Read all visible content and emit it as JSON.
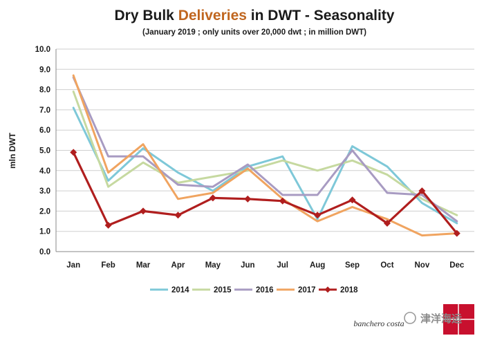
{
  "chart_data": {
    "type": "line",
    "title_parts": [
      "Dry Bulk ",
      "Deliveries",
      " in DWT - Seasonality"
    ],
    "subtitle": "(January 2019 ; only units over 20,000 dwt ; in million DWT)",
    "ylabel": "mln DWT",
    "xlabel": "",
    "ylim": [
      0,
      10
    ],
    "yticks": [
      "0.0",
      "1.0",
      "2.0",
      "3.0",
      "4.0",
      "5.0",
      "6.0",
      "7.0",
      "8.0",
      "9.0",
      "10.0"
    ],
    "categories": [
      "Jan",
      "Feb",
      "Mar",
      "Apr",
      "May",
      "Jun",
      "Jul",
      "Aug",
      "Sep",
      "Oct",
      "Nov",
      "Dec"
    ],
    "grid": true,
    "legend_position": "bottom",
    "series": [
      {
        "name": "2014",
        "color": "#7ec8d8",
        "values": [
          7.1,
          3.5,
          5.1,
          3.9,
          3.0,
          4.2,
          4.7,
          1.6,
          5.2,
          4.2,
          2.4,
          1.4
        ]
      },
      {
        "name": "2015",
        "color": "#c6d9a0",
        "values": [
          7.9,
          3.2,
          4.4,
          3.4,
          3.7,
          4.0,
          4.5,
          4.0,
          4.5,
          3.8,
          2.6,
          1.8
        ]
      },
      {
        "name": "2016",
        "color": "#a89bc2",
        "values": [
          8.6,
          4.7,
          4.7,
          3.3,
          3.2,
          4.3,
          2.8,
          2.8,
          5.0,
          2.9,
          2.8,
          1.5
        ]
      },
      {
        "name": "2017",
        "color": "#f0a460",
        "values": [
          8.7,
          3.9,
          5.3,
          2.6,
          2.9,
          4.1,
          2.6,
          1.5,
          2.2,
          1.6,
          0.8,
          0.9
        ]
      },
      {
        "name": "2018",
        "color": "#b01e1e",
        "values": [
          4.9,
          1.3,
          2.0,
          1.8,
          2.65,
          2.6,
          2.5,
          1.8,
          2.55,
          1.4,
          3.0,
          0.9
        ],
        "markers": true
      }
    ]
  },
  "brand": "banchero costa",
  "watermark": "津洋海运"
}
